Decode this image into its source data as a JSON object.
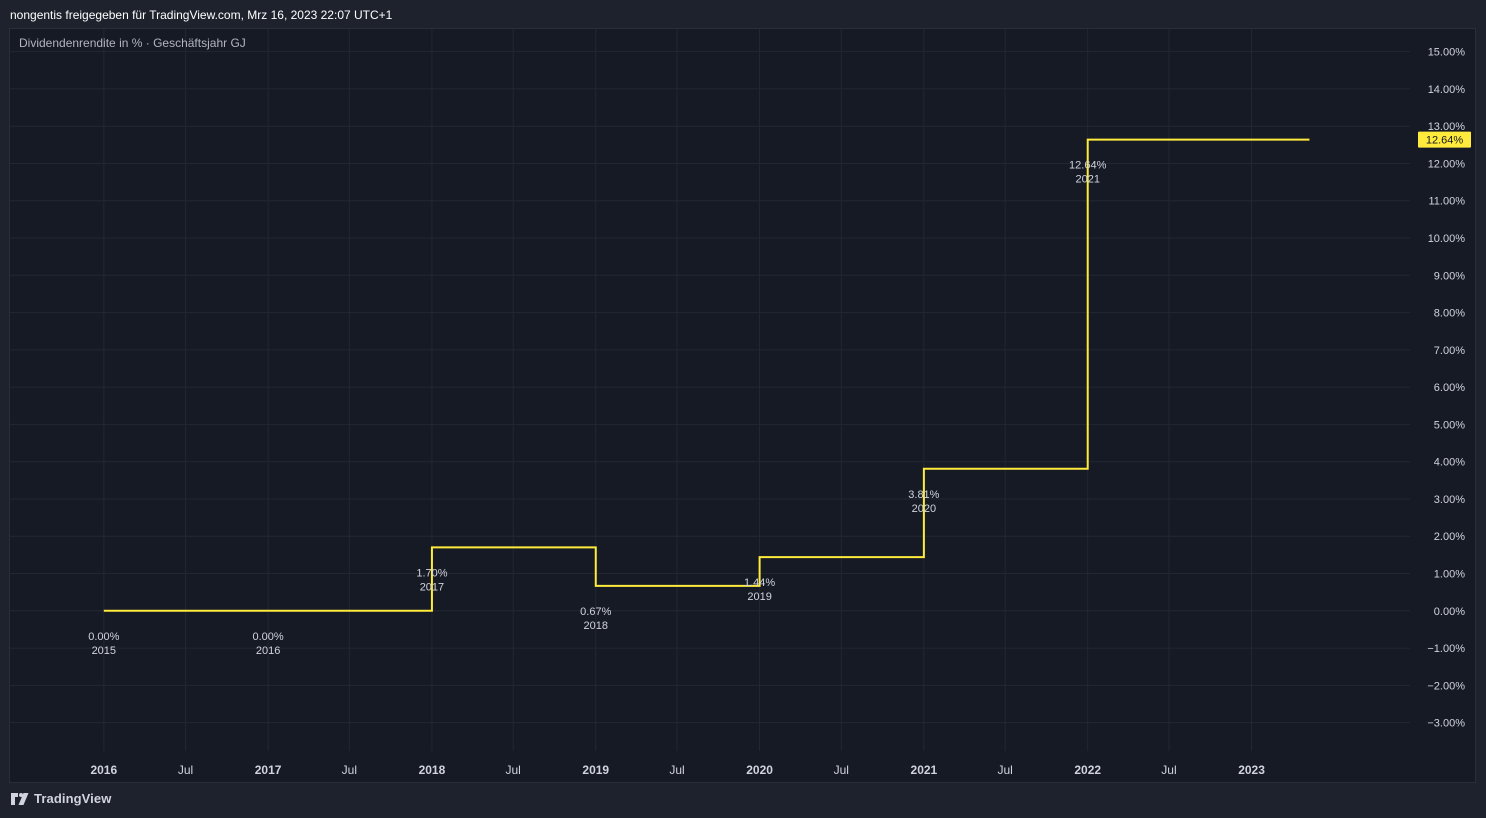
{
  "header": {
    "caption": "nongentis freigegeben für TradingView.com, Mrz 16, 2023 22:07 UTC+1"
  },
  "footer": {
    "brand": "TradingView"
  },
  "colors": {
    "line": "#ffeb3b",
    "grid": "#232733",
    "text": "#d1d4dc",
    "panel_bg": "#161a25",
    "page_bg": "#1e222d"
  },
  "chart_data": {
    "type": "line",
    "step": true,
    "title": "Dividendenrendite in % · Geschäftsjahr GJ",
    "grid": true,
    "ylim": [
      -3.6,
      15.5
    ],
    "x_range": [
      "2015-06-06",
      "2023-12-20"
    ],
    "y_ticks": [
      "15.00%",
      "14.00%",
      "13.00%",
      "12.00%",
      "11.00%",
      "10.00%",
      "9.00%",
      "8.00%",
      "7.00%",
      "6.00%",
      "5.00%",
      "4.00%",
      "3.00%",
      "2.00%",
      "1.00%",
      "0.00%",
      "−1.00%",
      "−2.00%",
      "−3.00%"
    ],
    "y_tick_values": [
      15,
      14,
      13,
      12,
      11,
      10,
      9,
      8,
      7,
      6,
      5,
      4,
      3,
      2,
      1,
      0,
      -1,
      -2,
      -3
    ],
    "x_ticks": [
      {
        "label": "2016",
        "date": "2016-01-01",
        "bold": true
      },
      {
        "label": "Jul",
        "date": "2016-07-01",
        "bold": false
      },
      {
        "label": "2017",
        "date": "2017-01-01",
        "bold": true
      },
      {
        "label": "Jul",
        "date": "2017-07-01",
        "bold": false
      },
      {
        "label": "2018",
        "date": "2018-01-01",
        "bold": true
      },
      {
        "label": "Jul",
        "date": "2018-07-01",
        "bold": false
      },
      {
        "label": "2019",
        "date": "2019-01-01",
        "bold": true
      },
      {
        "label": "Jul",
        "date": "2019-07-01",
        "bold": false
      },
      {
        "label": "2020",
        "date": "2020-01-01",
        "bold": true
      },
      {
        "label": "Jul",
        "date": "2020-07-01",
        "bold": false
      },
      {
        "label": "2021",
        "date": "2021-01-01",
        "bold": true
      },
      {
        "label": "Jul",
        "date": "2021-07-01",
        "bold": false
      },
      {
        "label": "2022",
        "date": "2022-01-01",
        "bold": true
      },
      {
        "label": "Jul",
        "date": "2022-07-01",
        "bold": false
      },
      {
        "label": "2023",
        "date": "2023-01-01",
        "bold": true
      }
    ],
    "points": [
      {
        "date": "2016-01-01",
        "value": 0.0,
        "value_label": "0.00%",
        "year_label": "2015"
      },
      {
        "date": "2017-01-01",
        "value": 0.0,
        "value_label": "0.00%",
        "year_label": "2016"
      },
      {
        "date": "2018-01-01",
        "value": 1.7,
        "value_label": "1.70%",
        "year_label": "2017"
      },
      {
        "date": "2019-01-01",
        "value": 0.67,
        "value_label": "0.67%",
        "year_label": "2018"
      },
      {
        "date": "2020-01-01",
        "value": 1.44,
        "value_label": "1.44%",
        "year_label": "2019"
      },
      {
        "date": "2021-01-01",
        "value": 3.81,
        "value_label": "3.81%",
        "year_label": "2020"
      },
      {
        "date": "2022-01-01",
        "value": 12.64,
        "value_label": "12.64%",
        "year_label": "2021"
      }
    ],
    "series_end_date": "2023-05-10",
    "last_value_label": "12.64%"
  }
}
